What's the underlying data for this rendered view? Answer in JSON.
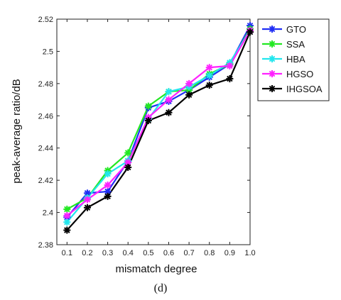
{
  "chart_data": {
    "type": "line",
    "caption": "(d)",
    "xlabel": "mismatch degree",
    "ylabel": "peak-average ratio/dB",
    "categories": [
      "0.1",
      "0.2",
      "0.3",
      "0.4",
      "0.5",
      "0.6",
      "0.7",
      "0.8",
      "0.9",
      "1.0"
    ],
    "x": [
      0.1,
      0.2,
      0.3,
      0.4,
      0.5,
      0.6,
      0.7,
      0.8,
      0.9,
      1.0
    ],
    "xlim": [
      0.05,
      1.0
    ],
    "ylim": [
      2.38,
      2.52
    ],
    "yticks": [
      "2.38",
      "2.4",
      "2.42",
      "2.44",
      "2.46",
      "2.48",
      "2.5",
      "2.52"
    ],
    "ytick_values": [
      2.38,
      2.4,
      2.42,
      2.44,
      2.46,
      2.48,
      2.5,
      2.52
    ],
    "legend_position": "top-right outside",
    "grid": false,
    "marker": "asterisk",
    "series": [
      {
        "name": "GTO",
        "color": "#1f2ef5",
        "values": [
          2.397,
          2.412,
          2.413,
          2.432,
          2.465,
          2.469,
          2.476,
          2.484,
          2.492,
          2.516
        ]
      },
      {
        "name": "SSA",
        "color": "#22e822",
        "values": [
          2.402,
          2.409,
          2.426,
          2.437,
          2.466,
          2.475,
          2.476,
          2.486,
          2.492,
          2.514
        ]
      },
      {
        "name": "HBA",
        "color": "#22e6ee",
        "values": [
          2.394,
          2.409,
          2.424,
          2.432,
          2.458,
          2.475,
          2.478,
          2.485,
          2.493,
          2.513
        ]
      },
      {
        "name": "HGSO",
        "color": "#ff22ff",
        "values": [
          2.398,
          2.408,
          2.417,
          2.431,
          2.459,
          2.47,
          2.48,
          2.49,
          2.491,
          2.513
        ]
      },
      {
        "name": "IHGSOA",
        "color": "#000000",
        "values": [
          2.389,
          2.403,
          2.41,
          2.428,
          2.457,
          2.462,
          2.473,
          2.479,
          2.483,
          2.512
        ]
      }
    ]
  }
}
